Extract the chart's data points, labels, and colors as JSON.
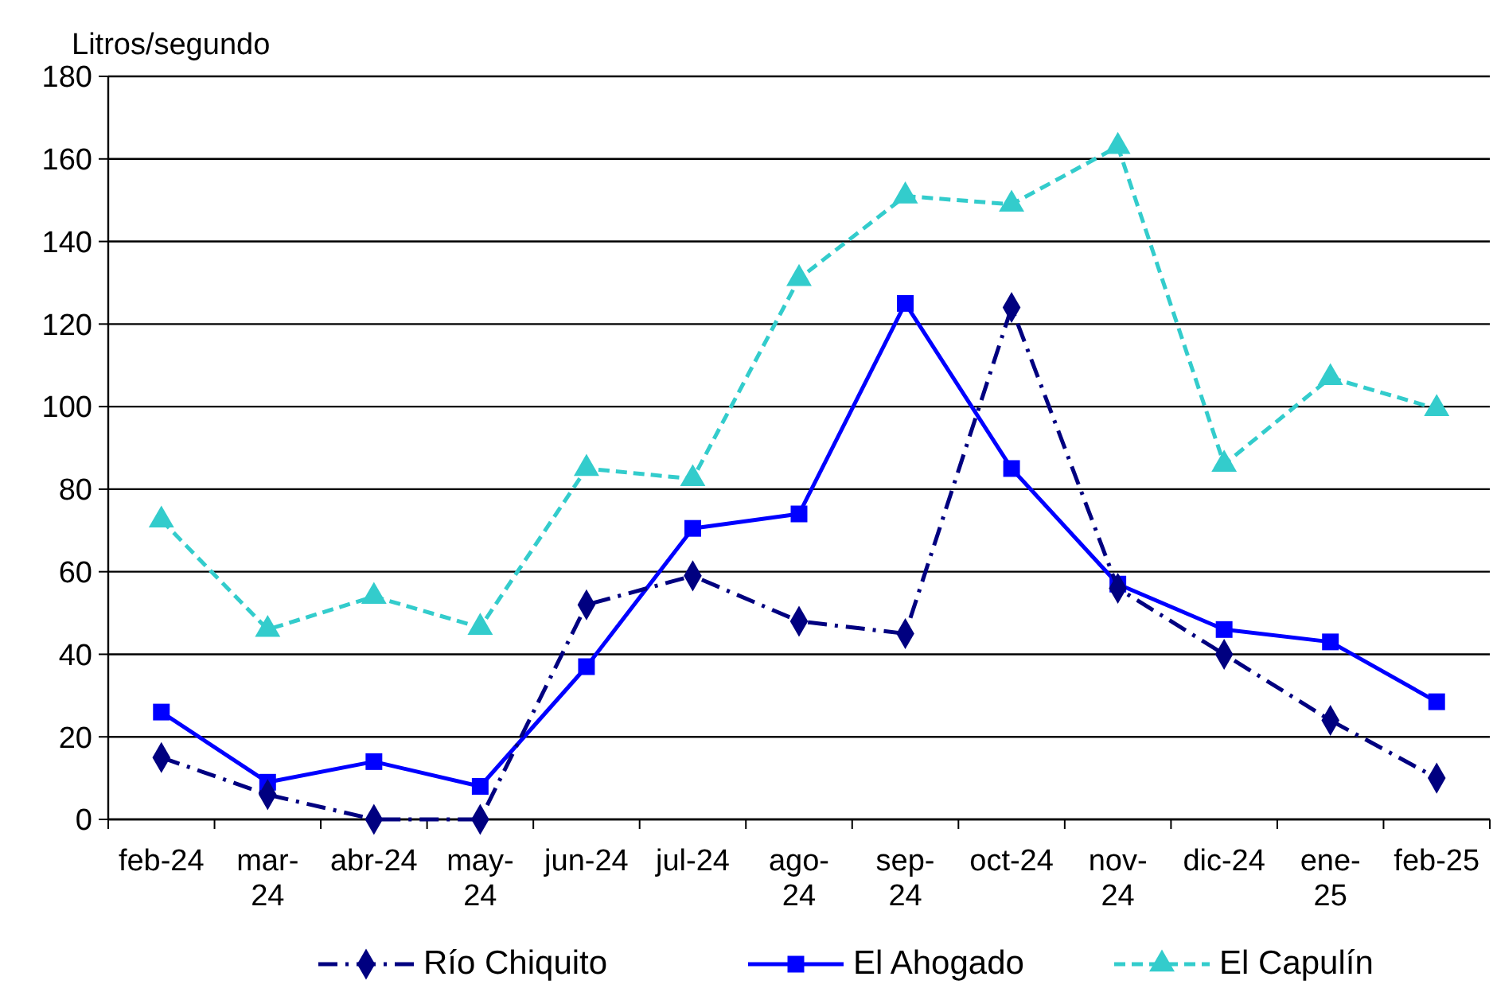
{
  "chart_data": {
    "type": "line",
    "ylabel": "Litros/segundo",
    "categories": [
      "feb-24",
      "mar-\n24",
      "abr-24",
      "may-\n24",
      "jun-24",
      "jul-24",
      "ago-\n24",
      "sep-\n24",
      "oct-24",
      "nov-\n24",
      "dic-24",
      "ene-\n25",
      "feb-25"
    ],
    "series": [
      {
        "name": "Río Chiquito",
        "color": "#000080",
        "marker": "diamond",
        "line_style": "dashdot",
        "values": [
          15,
          6,
          0,
          0,
          52,
          59,
          48,
          45,
          124,
          56,
          40,
          24,
          10
        ]
      },
      {
        "name": "El Ahogado",
        "color": "#0000ff",
        "marker": "square",
        "line_style": "solid",
        "values": [
          26,
          9,
          14,
          8,
          37,
          70.5,
          74,
          125,
          85,
          57,
          46,
          43,
          28.5
        ]
      },
      {
        "name": "El Capulín",
        "color": "#33cccc",
        "marker": "triangle",
        "line_style": "dashed",
        "values": [
          72.5,
          46,
          54,
          46.5,
          85,
          82.5,
          131,
          151,
          149,
          163,
          86,
          107,
          99.5
        ]
      }
    ],
    "ylim": [
      0,
      180
    ],
    "yticks": [
      0,
      20,
      40,
      60,
      80,
      100,
      120,
      140,
      160,
      180
    ],
    "grid": "y",
    "legend": "bottom"
  }
}
